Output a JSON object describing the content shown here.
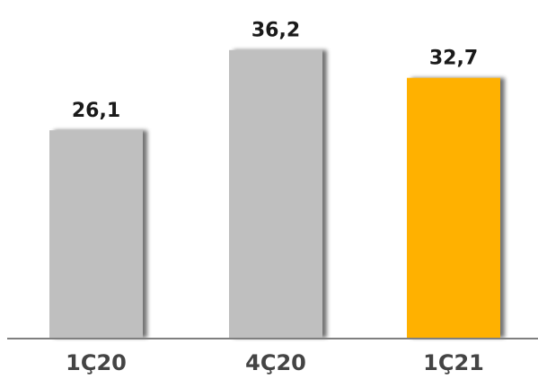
{
  "chart_data": {
    "type": "bar",
    "title": "",
    "xlabel": "",
    "ylabel": "",
    "categories": [
      "1Ç20",
      "4Ç20",
      "1Ç21"
    ],
    "values": [
      26.1,
      36.2,
      32.7
    ],
    "value_labels": [
      "26,1",
      "36,2",
      "32,7"
    ],
    "ylim": [
      0,
      42.5
    ],
    "grid": false,
    "legend": "none",
    "colors": {
      "bars": [
        "#bfbfbf",
        "#bfbfbf",
        "#ffb100"
      ],
      "axis": "#7f7f7f",
      "shadow": "#8c8c8c"
    }
  }
}
